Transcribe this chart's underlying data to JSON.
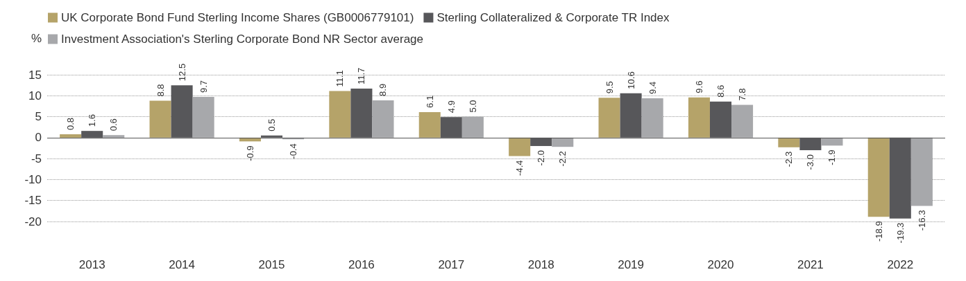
{
  "chart_data": {
    "type": "bar",
    "ylabel": "%",
    "categories": [
      "2013",
      "2014",
      "2015",
      "2016",
      "2017",
      "2018",
      "2019",
      "2020",
      "2021",
      "2022"
    ],
    "series": [
      {
        "name": "UK Corporate Bond Fund Sterling Income Shares (GB0006779101)",
        "color": "#b5a369",
        "values": [
          0.8,
          8.8,
          -0.9,
          11.1,
          6.1,
          -4.4,
          9.5,
          9.6,
          -2.3,
          -18.9
        ],
        "value_labels": [
          "0.8",
          "8.8",
          "-0.9",
          "11.1",
          "6.1",
          "-4.4",
          "9.5",
          "9.6",
          "-2.3",
          "-18.9"
        ]
      },
      {
        "name": "Sterling Collateralized & Corporate TR Index",
        "color": "#57575a",
        "values": [
          1.6,
          12.5,
          0.5,
          11.7,
          4.9,
          -2.0,
          10.6,
          8.6,
          -3.0,
          -19.3
        ],
        "value_labels": [
          "1.6",
          "12.5",
          "0.5",
          "11.7",
          "4.9",
          "-2.0",
          "10.6",
          "8.6",
          "-3.0",
          "-19.3"
        ]
      },
      {
        "name": "Investment Association's Sterling Corporate Bond NR Sector average",
        "color": "#a7a8ab",
        "values": [
          0.6,
          9.7,
          -0.4,
          8.9,
          5.0,
          -2.2,
          9.4,
          7.8,
          -1.9,
          -16.3
        ],
        "value_labels": [
          "0.6",
          "9.7",
          "-0.4",
          "8.9",
          "5.0",
          "-2.2",
          "9.4",
          "7.8",
          "-1.9",
          "-16.3"
        ]
      }
    ],
    "ylim": [
      -20,
      15
    ],
    "yticks": [
      -20,
      -15,
      -10,
      -5,
      0,
      5,
      10,
      15
    ],
    "grid": "y",
    "legend": "top left"
  }
}
